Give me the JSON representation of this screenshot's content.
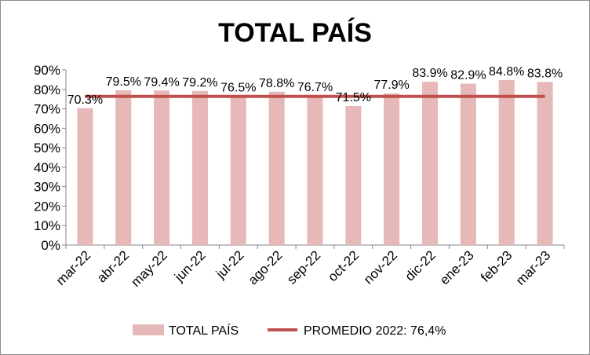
{
  "chart_data": {
    "type": "bar",
    "title": "TOTAL PAÍS",
    "xlabel": "",
    "ylabel": "",
    "categories": [
      "mar-22",
      "abr-22",
      "may-22",
      "jun-22",
      "jul-22",
      "ago-22",
      "sep-22",
      "oct-22",
      "nov-22",
      "dic-22",
      "ene-23",
      "feb-23",
      "mar-23"
    ],
    "series": [
      {
        "name": "TOTAL PAÍS",
        "type": "bar",
        "color": "#e6b8b7",
        "values": [
          70.3,
          79.5,
          79.4,
          79.2,
          76.5,
          78.8,
          76.7,
          71.5,
          77.9,
          83.9,
          82.9,
          84.8,
          83.8
        ],
        "labels": [
          "70.3%",
          "79.5%",
          "79.4%",
          "79.2%",
          "76.5%",
          "78.8%",
          "76.7%",
          "71.5%",
          "77.9%",
          "83.9%",
          "82.9%",
          "84.8%",
          "83.8%"
        ]
      },
      {
        "name": "PROMEDIO 2022: 76,4%",
        "type": "line",
        "color": "#c0504d",
        "value": 76.4
      }
    ],
    "ylim": [
      0,
      90
    ],
    "yticks": [
      0,
      10,
      20,
      30,
      40,
      50,
      60,
      70,
      80,
      90
    ],
    "ytick_labels": [
      "0%",
      "10%",
      "20%",
      "30%",
      "40%",
      "50%",
      "60%",
      "70%",
      "80%",
      "90%"
    ],
    "grid": false,
    "legend_position": "bottom"
  }
}
